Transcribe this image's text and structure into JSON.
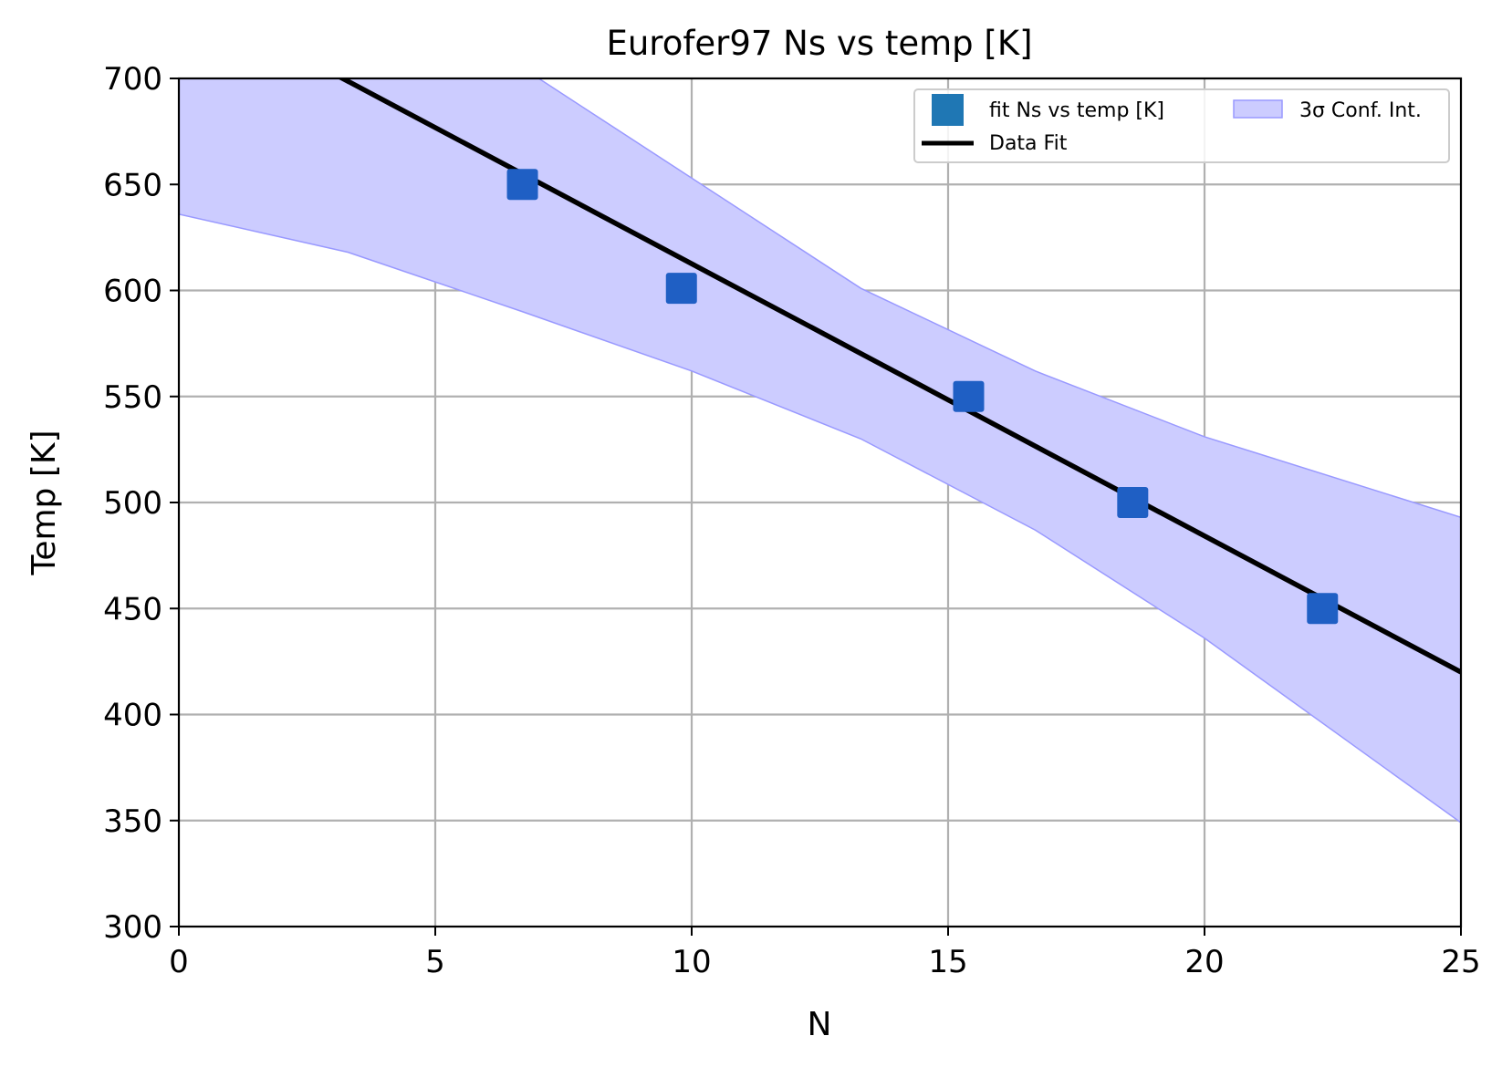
{
  "chart_data": {
    "type": "scatter",
    "title": "Eurofer97 Ns vs temp [K]",
    "xlabel": "N",
    "ylabel": "Temp [K]",
    "xlim": [
      0,
      25
    ],
    "ylim": [
      300,
      700
    ],
    "xticks": [
      0,
      5,
      10,
      15,
      20,
      25
    ],
    "yticks": [
      300,
      350,
      400,
      450,
      500,
      550,
      600,
      650,
      700
    ],
    "grid": true,
    "legend_position": "top-right",
    "series": [
      {
        "name": "fit Ns vs temp [K]",
        "kind": "points",
        "marker": "square",
        "color": "#1f5fc4",
        "legend_color": "#1f77b4",
        "points": [
          {
            "x": 6.7,
            "y": 650
          },
          {
            "x": 9.8,
            "y": 601
          },
          {
            "x": 15.4,
            "y": 550
          },
          {
            "x": 18.6,
            "y": 500
          },
          {
            "x": 22.3,
            "y": 450
          }
        ]
      },
      {
        "name": "Data Fit",
        "kind": "line",
        "color": "#000000",
        "points": [
          {
            "x": 0,
            "y": 741
          },
          {
            "x": 25,
            "y": 420
          }
        ]
      },
      {
        "name": "3σ Conf. Int.",
        "kind": "band",
        "color": "#ccccff",
        "edge_color": "#9999ff",
        "x": [
          0,
          3.3,
          6.7,
          10,
          13.3,
          16.7,
          20,
          25
        ],
        "lower": [
          636,
          618,
          590,
          562,
          530,
          487,
          436,
          349
        ],
        "upper": [
          845,
          770,
          705,
          653,
          601,
          562,
          531,
          493
        ]
      }
    ]
  }
}
